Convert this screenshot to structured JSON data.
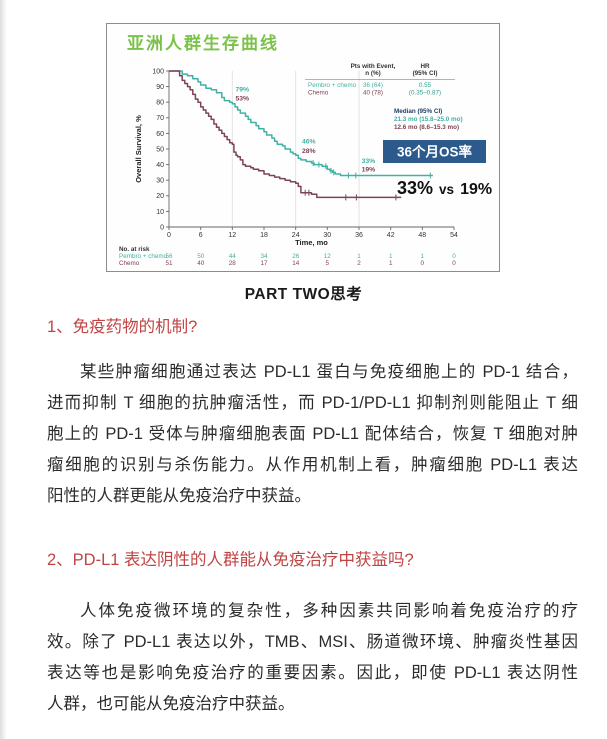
{
  "page": {
    "part_heading": "PART TWO思考",
    "section1": {
      "heading": "1、免疫药物的机制?",
      "lines": [
        "某些肿瘤细胞通过表达 PD-L1 蛋白与免疫细胞上的 PD-1 结合，",
        "进而抑制 T 细胞的抗肿瘤活性，而 PD-1/PD-L1 抑制剂则能阻止 T 细",
        "胞上的 PD-1 受体与肿瘤细胞表面 PD-L1 配体结合，恢复 T 细胞对肿",
        "瘤细胞的识别与杀伤能力。从作用机制上看，肿瘤细胞 PD-L1 表达",
        "阳性的人群更能从免疫治疗中获益。"
      ]
    },
    "section2": {
      "heading": "2、PD-L1 表达阴性的人群能从免疫治疗中获益吗?",
      "lines": [
        "人体免疫微环境的复杂性，多种因素共同影响着免疫治疗的疗",
        "效。除了 PD-L1 表达以外，TMB、MSI、肠道微环境、肿瘤炎性基因",
        "表达等也是影响免疫治疗的重要因素。因此，即使 PD-L1 表达阴性",
        "人群，也可能从免疫治疗中获益。"
      ]
    }
  },
  "colors": {
    "title_green": "#7cc24a",
    "heading_red": "#c04444",
    "pembro_teal": "#3fb2a3",
    "chemo_maroon": "#7c4455",
    "hr_green": "#2f9d8e",
    "median_navy": "#1e3f66",
    "badge_blue": "#2c5a8c",
    "axis_gray": "#666666"
  },
  "chart_data": {
    "type": "line",
    "subtype": "kaplan-meier-step",
    "title": "亚洲人群生存曲线",
    "xlabel": "Time, mo",
    "ylabel": "Overall Survival, %",
    "xlim": [
      0,
      54
    ],
    "xticks": [
      0,
      6,
      12,
      18,
      24,
      30,
      36,
      42,
      48,
      54
    ],
    "ylim": [
      0,
      100
    ],
    "yticks": [
      0,
      10,
      20,
      30,
      40,
      50,
      60,
      70,
      80,
      90,
      100
    ],
    "gridlines_x": [
      12,
      24,
      36
    ],
    "series": [
      {
        "name": "Pembro + chemo",
        "color": "#3fb2a3",
        "points": [
          [
            0,
            100
          ],
          [
            2,
            100
          ],
          [
            2.5,
            98
          ],
          [
            3.5,
            97
          ],
          [
            4.5,
            95
          ],
          [
            5.5,
            93
          ],
          [
            6,
            91
          ],
          [
            7,
            89
          ],
          [
            8,
            88
          ],
          [
            9,
            86
          ],
          [
            10,
            83
          ],
          [
            10.5,
            81
          ],
          [
            11.5,
            80
          ],
          [
            12,
            79
          ],
          [
            12.5,
            77
          ],
          [
            13,
            75
          ],
          [
            13.5,
            73
          ],
          [
            14.5,
            71
          ],
          [
            15,
            69
          ],
          [
            15.5,
            67
          ],
          [
            16.5,
            65
          ],
          [
            17,
            63
          ],
          [
            18,
            61
          ],
          [
            18.5,
            59
          ],
          [
            19.5,
            57
          ],
          [
            20,
            55
          ],
          [
            20.5,
            53
          ],
          [
            21.5,
            52
          ],
          [
            22,
            50
          ],
          [
            23,
            48
          ],
          [
            23.5,
            47
          ],
          [
            24,
            46
          ],
          [
            24.5,
            44
          ],
          [
            25,
            43
          ],
          [
            26,
            42
          ],
          [
            27,
            41
          ],
          [
            27.5,
            40
          ],
          [
            29,
            39
          ],
          [
            30,
            37
          ],
          [
            30.5,
            36
          ],
          [
            31,
            35
          ],
          [
            31.5,
            34
          ],
          [
            32.5,
            33
          ],
          [
            50,
            33
          ]
        ],
        "censors": [
          [
            27.3,
            41
          ],
          [
            28.4,
            40
          ],
          [
            29.7,
            39
          ],
          [
            30.7,
            36
          ],
          [
            31.2,
            35
          ],
          [
            34,
            33
          ],
          [
            35.4,
            33
          ],
          [
            49.5,
            33
          ]
        ]
      },
      {
        "name": "Chemo",
        "color": "#7c4455",
        "points": [
          [
            0,
            100
          ],
          [
            1.5,
            100
          ],
          [
            2,
            97
          ],
          [
            2.5,
            94
          ],
          [
            3,
            92
          ],
          [
            3.5,
            90
          ],
          [
            4,
            88
          ],
          [
            4.5,
            85
          ],
          [
            5,
            82
          ],
          [
            5.5,
            80
          ],
          [
            6,
            77
          ],
          [
            6.5,
            75
          ],
          [
            7,
            73
          ],
          [
            7.5,
            71
          ],
          [
            8,
            69
          ],
          [
            8.5,
            66
          ],
          [
            9,
            64
          ],
          [
            9.5,
            62
          ],
          [
            10,
            60
          ],
          [
            10.5,
            58
          ],
          [
            11,
            56
          ],
          [
            11.5,
            54
          ],
          [
            12,
            53
          ],
          [
            12.3,
            48
          ],
          [
            12.7,
            46
          ],
          [
            13,
            45
          ],
          [
            13.5,
            43
          ],
          [
            14,
            40
          ],
          [
            14.5,
            39
          ],
          [
            15.5,
            38
          ],
          [
            16,
            37
          ],
          [
            17,
            36
          ],
          [
            18,
            34
          ],
          [
            19,
            33
          ],
          [
            20,
            32
          ],
          [
            21,
            31
          ],
          [
            22,
            30
          ],
          [
            23,
            29
          ],
          [
            24,
            28
          ],
          [
            24.5,
            26
          ],
          [
            25,
            22
          ],
          [
            27,
            21
          ],
          [
            28,
            19
          ],
          [
            44,
            19
          ]
        ],
        "censors": [
          [
            25.8,
            22
          ],
          [
            26.5,
            22
          ],
          [
            33.5,
            19
          ],
          [
            35.5,
            19
          ],
          [
            43,
            19
          ]
        ]
      }
    ],
    "annotations": [
      {
        "text": "79%",
        "x": 12.6,
        "y": 87,
        "series": 0
      },
      {
        "text": "53%",
        "x": 12.6,
        "y": 81,
        "series": 1
      },
      {
        "text": "46%",
        "x": 25.2,
        "y": 53.5,
        "series": 0
      },
      {
        "text": "28%",
        "x": 25.2,
        "y": 47.5,
        "series": 1
      },
      {
        "text": "33%",
        "x": 36.5,
        "y": 41,
        "series": 0
      },
      {
        "text": "19%",
        "x": 36.5,
        "y": 35.5,
        "series": 1
      }
    ],
    "event_table": {
      "col1_header": [
        "Pts with Event,",
        "n (%)"
      ],
      "col2_header": [
        "HR",
        "(95% CI)"
      ],
      "rows": [
        {
          "name": "Pembro + chemo",
          "n": "36 (64)",
          "hr": "0.55"
        },
        {
          "name": "Chemo",
          "n": "40 (78)",
          "hr": "(0.35–0.87)"
        }
      ]
    },
    "median_block": {
      "header": "Median (95% CI)",
      "values": [
        "21.3 mo (15.8–25.0 mo)",
        "12.6 mo (8.6–15.3 mo)"
      ]
    },
    "os_badge": "36个月OS率",
    "os_compare": {
      "left": "33%",
      "mid": "vs",
      "right": "19%"
    },
    "at_risk": {
      "label": "No. at risk",
      "rows": [
        {
          "name": "Pembro + chemo",
          "values": [
            "56",
            "50",
            "44",
            "34",
            "26",
            "12",
            "1",
            "1",
            "1",
            "0"
          ]
        },
        {
          "name": "Chemo",
          "values": [
            "51",
            "40",
            "28",
            "17",
            "14",
            "5",
            "2",
            "1",
            "0",
            "0"
          ]
        }
      ]
    }
  }
}
